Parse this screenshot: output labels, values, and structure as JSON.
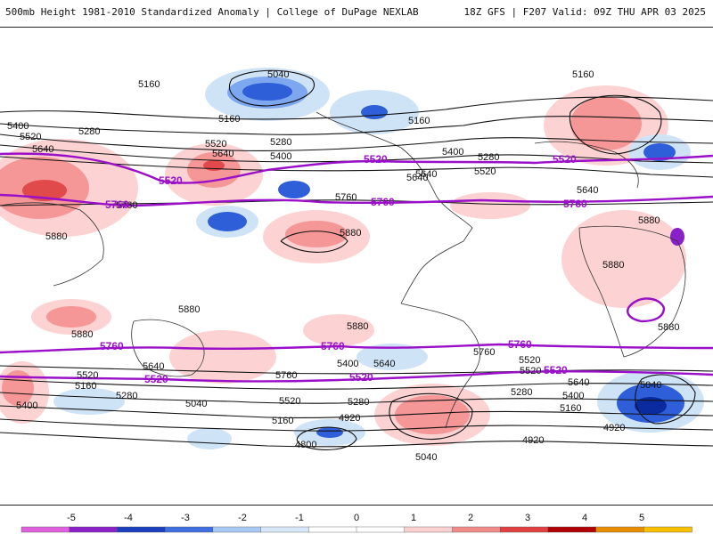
{
  "header": {
    "title": "500mb Height 1981-2010 Standardized Anomaly | College of DuPage NEXLAB",
    "run_info": "18Z GFS | F207 Valid: 09Z THU APR 03 2025"
  },
  "map": {
    "height_labels_black": [
      "5040",
      "5160",
      "5160",
      "5160",
      "5400",
      "5520",
      "5640",
      "5280",
      "5160",
      "5520",
      "5640",
      "5280",
      "5400",
      "5400",
      "5280",
      "5520",
      "5640",
      "5760",
      "5760",
      "5880",
      "5880",
      "5640",
      "5880",
      "5880",
      "5880",
      "5880",
      "5880",
      "5880",
      "5640",
      "5760",
      "5520",
      "5160",
      "5400",
      "5280",
      "5040",
      "5520",
      "5280",
      "5160",
      "4920",
      "4800",
      "5400",
      "5640",
      "5760",
      "5520",
      "5280",
      "5640",
      "5400",
      "5040",
      "5160",
      "4920",
      "4920",
      "5040",
      "5520",
      "5640"
    ],
    "height_labels_purple": [
      "5520",
      "5520",
      "5520",
      "5760",
      "5760",
      "5760",
      "5760",
      "5760",
      "5760",
      "5520",
      "5520",
      "5520"
    ],
    "colors": {
      "pos1": "#fcd2d2",
      "pos2": "#f59797",
      "pos3": "#e04a4a",
      "pos4": "#b40000",
      "neg1": "#cfe3f7",
      "neg2": "#7da7ee",
      "neg3": "#2f5fd8",
      "neg4": "#0a2aa0",
      "contour": "#111111",
      "contour_highlight": "#9a10c8",
      "coast": "#333333"
    }
  },
  "colorbar": {
    "ticks": [
      "-5",
      "-4",
      "-3",
      "-2",
      "-1",
      "0",
      "1",
      "2",
      "3",
      "4",
      "5"
    ],
    "colors": [
      "#e060e0",
      "#8a20c8",
      "#1a3fbf",
      "#3f6fe0",
      "#a8c8f5",
      "#d8e8fb",
      "#ffffff",
      "#ffffff",
      "#fbd0d0",
      "#f28a8a",
      "#e04040",
      "#b00000",
      "#e88c00",
      "#f8c000"
    ]
  }
}
